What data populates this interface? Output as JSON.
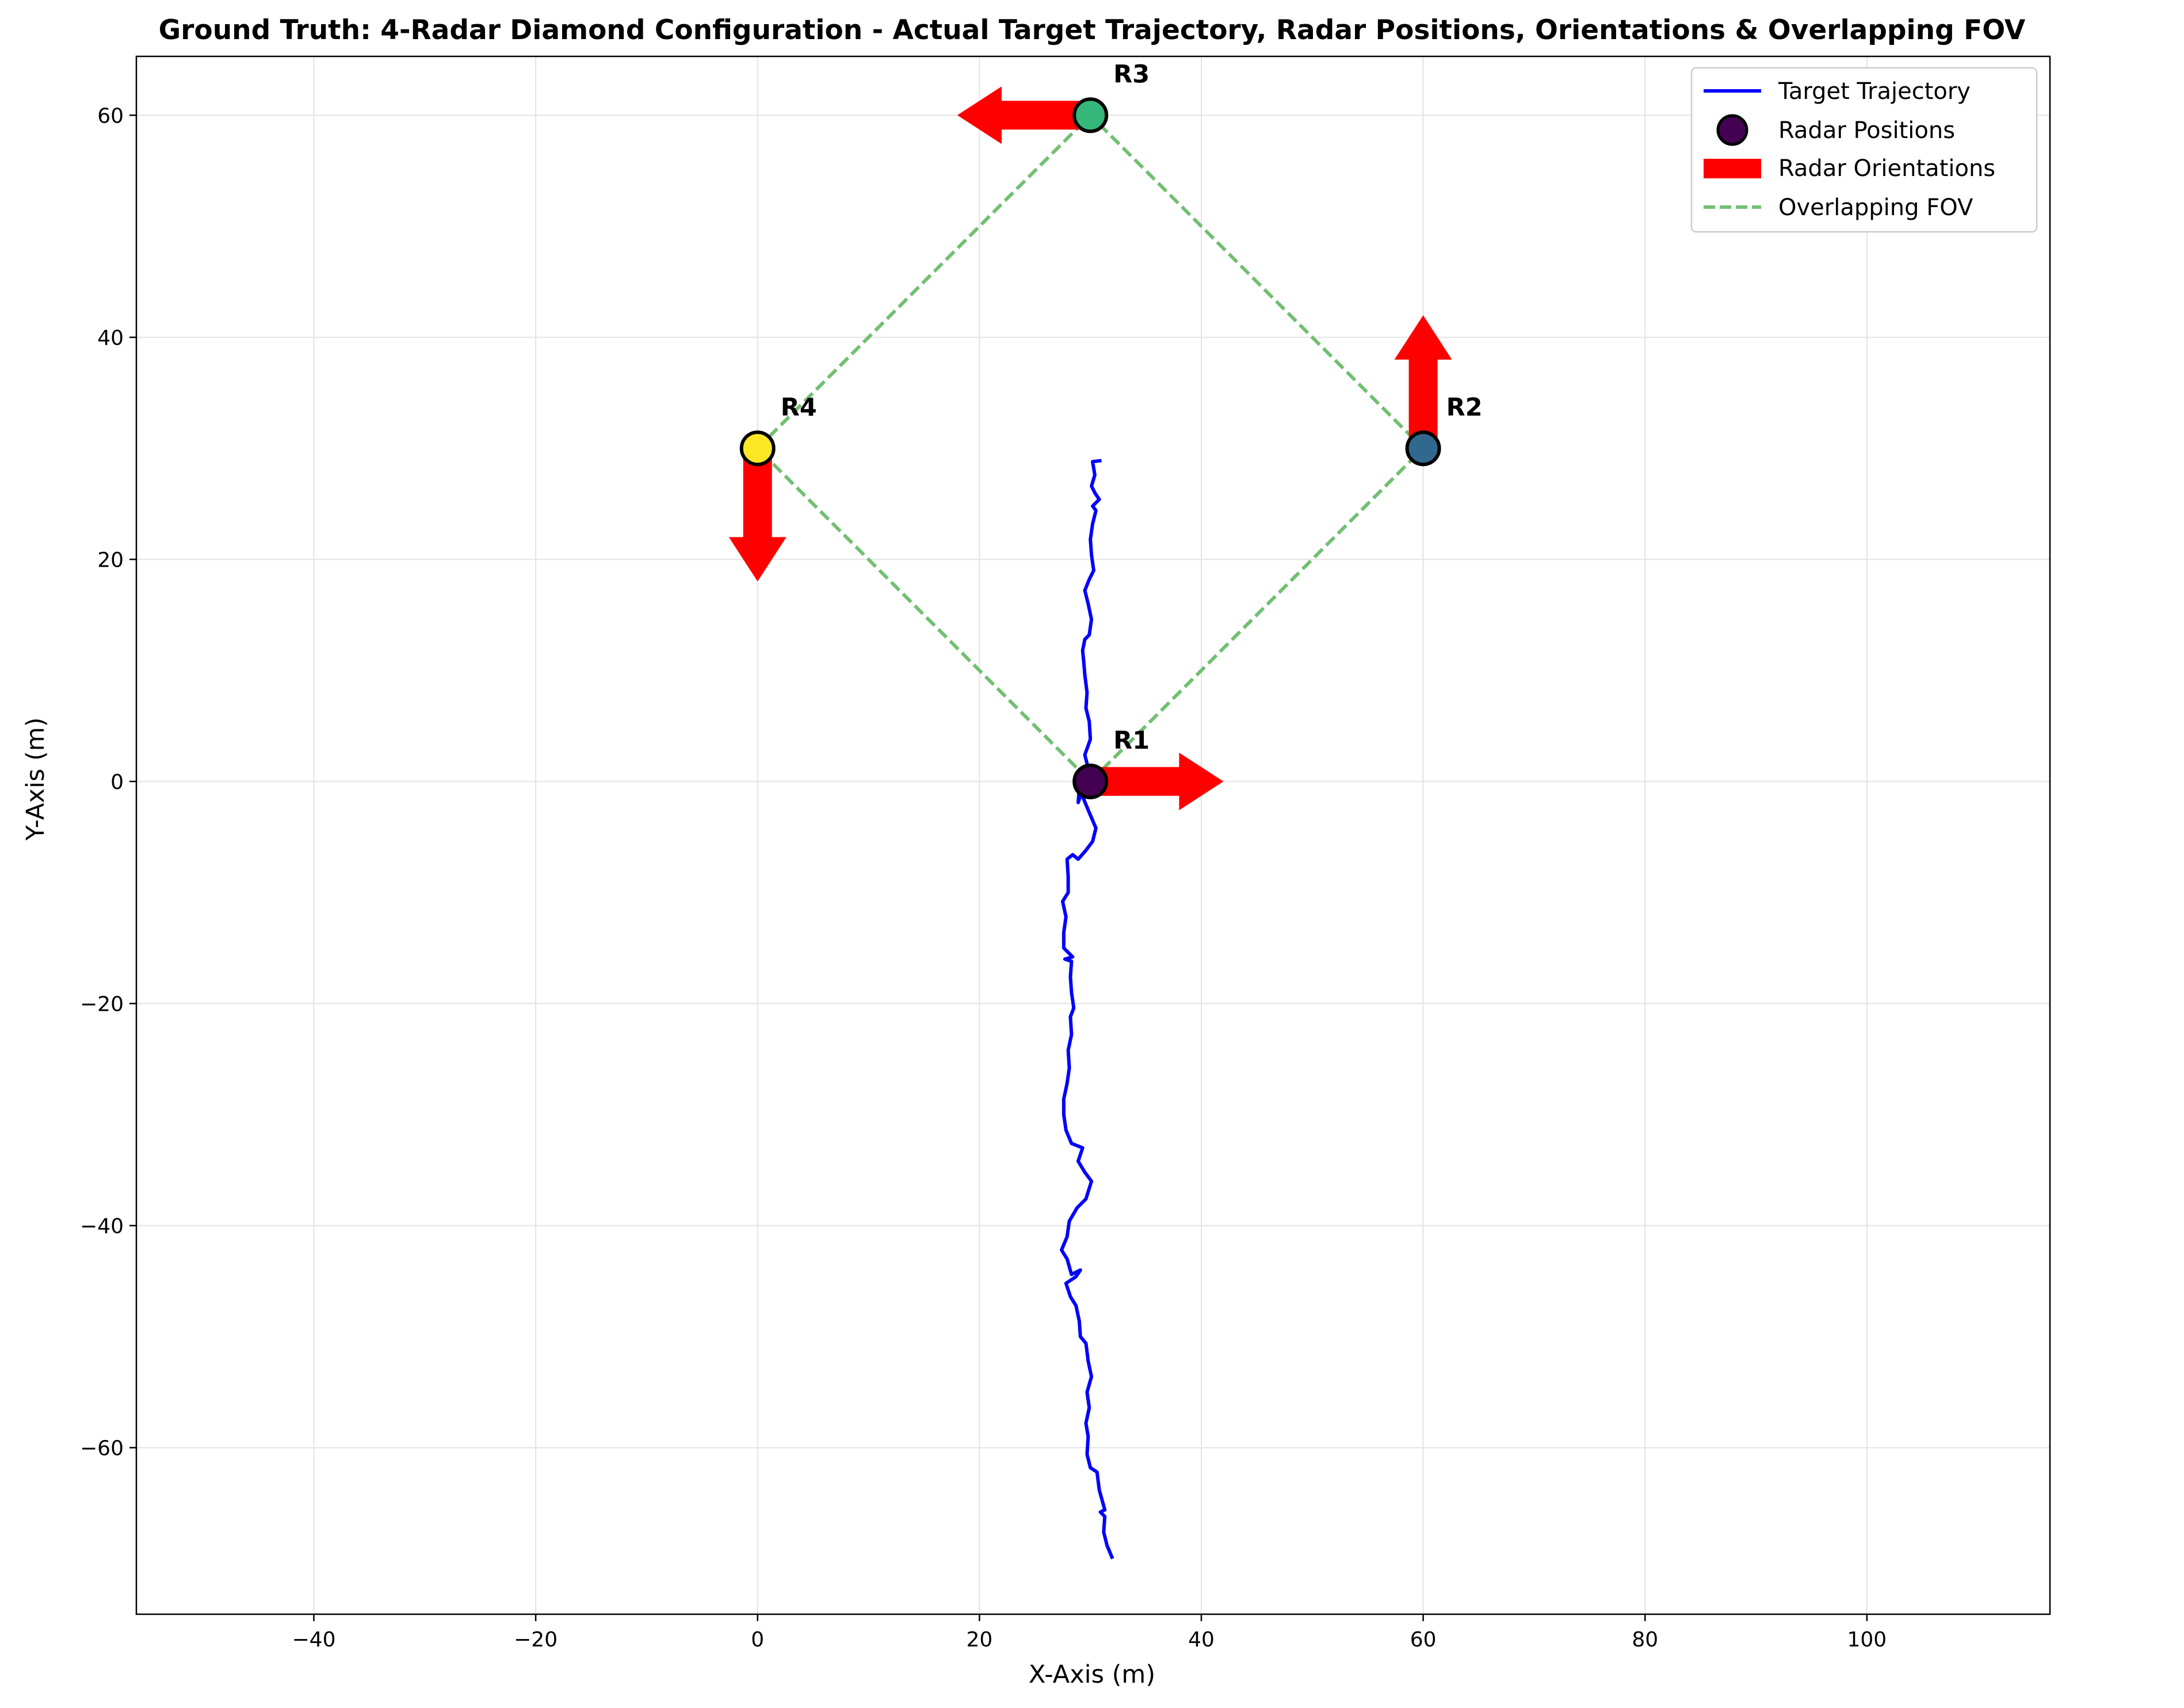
{
  "chart_data": {
    "type": "line",
    "title": "Ground Truth: 4-Radar Diamond Configuration - Actual Target Trajectory, Radar Positions, Orientations & Overlapping FOV",
    "xlabel": "X-Axis (m)",
    "ylabel": "Y-Axis (m)",
    "xlim": [
      -56,
      116.5
    ],
    "ylim": [
      -75,
      65.3
    ],
    "grid": true,
    "legend_position": "top-right",
    "x_ticks": [
      -40,
      -20,
      0,
      20,
      40,
      60,
      80,
      100
    ],
    "x_tick_labels": [
      "−40",
      "−20",
      "0",
      "20",
      "40",
      "60",
      "80",
      "100"
    ],
    "y_ticks": [
      -60,
      -40,
      -20,
      0,
      20,
      40,
      60
    ],
    "y_tick_labels": [
      "−60",
      "−40",
      "−20",
      "0",
      "20",
      "40",
      "60"
    ],
    "legend": [
      {
        "label": "Target Trajectory",
        "kind": "line",
        "color": "#0000ff"
      },
      {
        "label": "Radar Positions",
        "kind": "marker",
        "color": "#440154"
      },
      {
        "label": "Radar Orientations",
        "kind": "patch",
        "color": "#ff0000"
      },
      {
        "label": "Overlapping FOV",
        "kind": "dashed",
        "color": "#72bf72"
      }
    ],
    "radars": [
      {
        "name": "R1",
        "x": 30,
        "y": 0,
        "color": "#440154",
        "heading_deg": 0
      },
      {
        "name": "R2",
        "x": 60,
        "y": 30,
        "color": "#31688e",
        "heading_deg": 90
      },
      {
        "name": "R3",
        "x": 30,
        "y": 60,
        "color": "#35b779",
        "heading_deg": 180
      },
      {
        "name": "R4",
        "x": 0,
        "y": 30,
        "color": "#fde725",
        "heading_deg": 270
      }
    ],
    "fov_polygon": [
      [
        30,
        0
      ],
      [
        60,
        30
      ],
      [
        30,
        60
      ],
      [
        0,
        30
      ],
      [
        30,
        0
      ]
    ],
    "trajectory": [
      [
        32.0,
        -70.0
      ],
      [
        31.5,
        -68.8
      ],
      [
        31.2,
        -67.6
      ],
      [
        31.3,
        -66.2
      ],
      [
        30.9,
        -65.8
      ],
      [
        31.3,
        -65.6
      ],
      [
        30.8,
        -63.8
      ],
      [
        30.6,
        -62.2
      ],
      [
        30.0,
        -61.8
      ],
      [
        29.7,
        -60.6
      ],
      [
        29.8,
        -59.0
      ],
      [
        29.6,
        -57.8
      ],
      [
        29.9,
        -56.4
      ],
      [
        29.7,
        -55.0
      ],
      [
        30.1,
        -53.6
      ],
      [
        29.8,
        -52.2
      ],
      [
        29.6,
        -50.6
      ],
      [
        29.1,
        -50.0
      ],
      [
        29.0,
        -48.6
      ],
      [
        28.7,
        -47.2
      ],
      [
        28.2,
        -46.4
      ],
      [
        27.8,
        -45.2
      ],
      [
        28.7,
        -44.6
      ],
      [
        29.1,
        -44.0
      ],
      [
        28.3,
        -44.4
      ],
      [
        27.9,
        -43.0
      ],
      [
        27.4,
        -42.2
      ],
      [
        27.9,
        -41.0
      ],
      [
        28.1,
        -39.6
      ],
      [
        28.8,
        -38.4
      ],
      [
        29.6,
        -37.6
      ],
      [
        30.1,
        -36.0
      ],
      [
        29.5,
        -35.2
      ],
      [
        28.9,
        -34.2
      ],
      [
        29.3,
        -33.0
      ],
      [
        28.3,
        -32.6
      ],
      [
        27.8,
        -31.4
      ],
      [
        27.6,
        -30.0
      ],
      [
        27.6,
        -28.6
      ],
      [
        27.9,
        -27.2
      ],
      [
        28.1,
        -25.8
      ],
      [
        28.0,
        -24.2
      ],
      [
        28.3,
        -22.8
      ],
      [
        28.2,
        -21.2
      ],
      [
        28.5,
        -20.4
      ],
      [
        28.3,
        -19.0
      ],
      [
        28.2,
        -17.6
      ],
      [
        28.3,
        -16.2
      ],
      [
        27.7,
        -16.0
      ],
      [
        28.4,
        -15.8
      ],
      [
        27.6,
        -15.0
      ],
      [
        27.6,
        -13.6
      ],
      [
        27.8,
        -12.2
      ],
      [
        27.5,
        -10.8
      ],
      [
        28.0,
        -10.0
      ],
      [
        28.0,
        -8.6
      ],
      [
        27.9,
        -7.0
      ],
      [
        28.4,
        -6.6
      ],
      [
        28.9,
        -7.0
      ],
      [
        29.6,
        -6.2
      ],
      [
        30.2,
        -5.4
      ],
      [
        30.5,
        -4.2
      ],
      [
        29.9,
        -2.8
      ],
      [
        29.4,
        -1.6
      ],
      [
        29.0,
        -0.6
      ],
      [
        28.9,
        -1.9
      ],
      [
        29.4,
        -0.4
      ],
      [
        29.8,
        1.2
      ],
      [
        29.5,
        2.4
      ],
      [
        30.0,
        3.8
      ],
      [
        29.9,
        5.4
      ],
      [
        29.6,
        6.6
      ],
      [
        29.7,
        8.0
      ],
      [
        29.5,
        9.6
      ],
      [
        29.4,
        10.8
      ],
      [
        29.3,
        11.8
      ],
      [
        29.5,
        12.8
      ],
      [
        29.9,
        13.2
      ],
      [
        30.1,
        14.6
      ],
      [
        29.8,
        16.0
      ],
      [
        29.5,
        17.2
      ],
      [
        29.9,
        18.2
      ],
      [
        30.3,
        19.0
      ],
      [
        30.1,
        20.4
      ],
      [
        30.0,
        21.8
      ],
      [
        30.2,
        23.2
      ],
      [
        30.5,
        24.4
      ],
      [
        30.2,
        24.8
      ],
      [
        30.8,
        25.4
      ],
      [
        30.4,
        26.0
      ],
      [
        30.1,
        26.6
      ],
      [
        30.4,
        27.6
      ],
      [
        30.2,
        28.8
      ],
      [
        31.0,
        28.9
      ]
    ]
  }
}
